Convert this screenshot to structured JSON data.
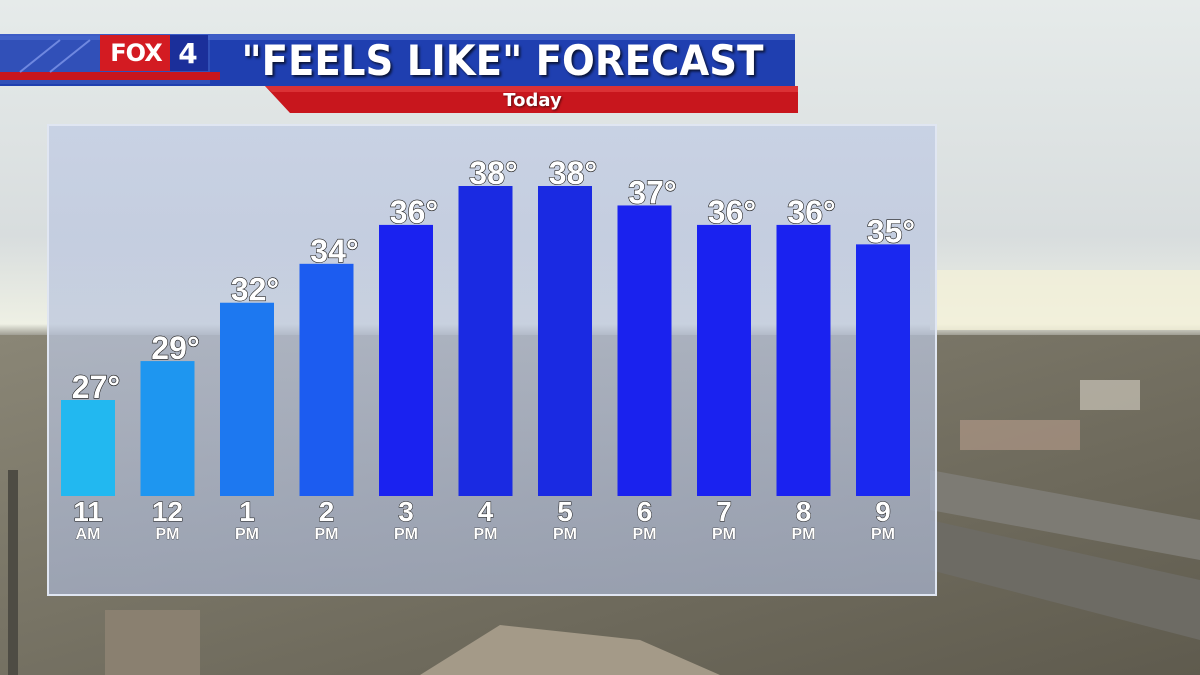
{
  "header": {
    "logo_text": "FOX",
    "logo_number": "4",
    "title": "\"FEELS LIKE\" FORECAST",
    "subtitle": "Today"
  },
  "colors": {
    "header_blue": "#1f3fb0",
    "header_red": "#c8161d",
    "bar_light": "#22b8f0",
    "bar_dark": "#1a2ee8"
  },
  "chart_data": {
    "type": "bar",
    "title": "\"FEELS LIKE\" FORECAST",
    "subtitle": "Today",
    "categories": [
      "11 AM",
      "12 PM",
      "1 PM",
      "2 PM",
      "3 PM",
      "4 PM",
      "5 PM",
      "6 PM",
      "7 PM",
      "8 PM",
      "9 PM"
    ],
    "tick_labels": [
      {
        "hour": "11",
        "ampm": "AM"
      },
      {
        "hour": "12",
        "ampm": "PM"
      },
      {
        "hour": "1",
        "ampm": "PM"
      },
      {
        "hour": "2",
        "ampm": "PM"
      },
      {
        "hour": "3",
        "ampm": "PM"
      },
      {
        "hour": "4",
        "ampm": "PM"
      },
      {
        "hour": "5",
        "ampm": "PM"
      },
      {
        "hour": "6",
        "ampm": "PM"
      },
      {
        "hour": "7",
        "ampm": "PM"
      },
      {
        "hour": "8",
        "ampm": "PM"
      },
      {
        "hour": "9",
        "ampm": "PM"
      }
    ],
    "values": [
      27,
      29,
      32,
      34,
      36,
      38,
      38,
      37,
      36,
      36,
      35
    ],
    "value_labels": [
      "27°",
      "29°",
      "32°",
      "34°",
      "36°",
      "38°",
      "38°",
      "37°",
      "36°",
      "36°",
      "35°"
    ],
    "bar_colors": [
      "#22b8f0",
      "#1e96f0",
      "#1d78f0",
      "#1c5cf0",
      "#1a22f0",
      "#1a2ae2",
      "#1a2ae2",
      "#1a22ee",
      "#1a22f0",
      "#1a22f0",
      "#1a28f0"
    ],
    "grid": false,
    "legend": "none"
  }
}
